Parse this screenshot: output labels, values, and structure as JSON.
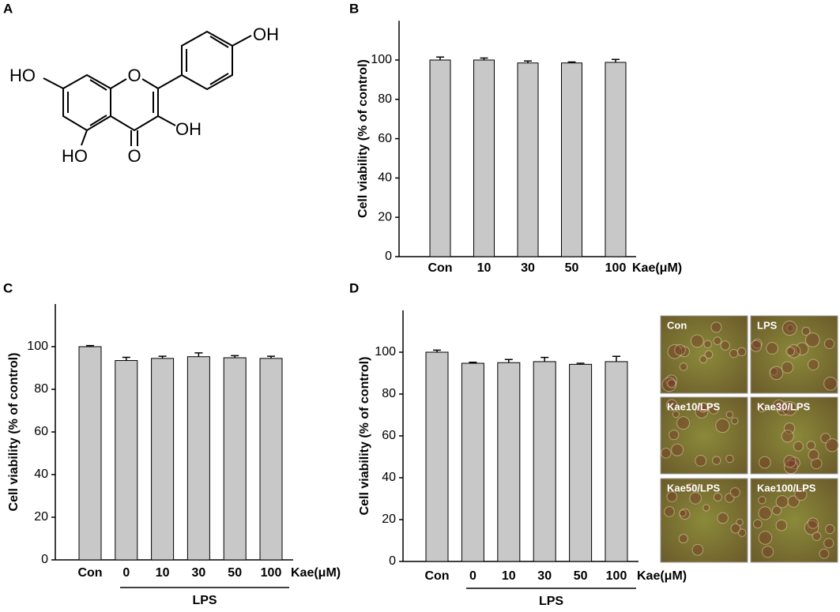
{
  "panel_labels": [
    "A",
    "B",
    "C",
    "D"
  ],
  "structure": {
    "labels": [
      "OH",
      "HO",
      "O",
      "OH",
      "HO",
      "O"
    ]
  },
  "micrographs": [
    "Con",
    "LPS",
    "Kae10/LPS",
    "Kae30/LPS",
    "Kae50/LPS",
    "Kae100/LPS"
  ],
  "chart_data": [
    {
      "type": "bar",
      "ylabel": "Cell viability (% of control)",
      "xlabel": "Kae(μM)",
      "categories": [
        "Con",
        "10",
        "30",
        "50",
        "100"
      ],
      "values": [
        100,
        100,
        98.5,
        98.5,
        98.8
      ],
      "errors": [
        1.5,
        1,
        1,
        0.5,
        1.5
      ],
      "color": "#c8c8c8",
      "ylim": [
        0,
        120
      ],
      "yticks": [
        0,
        20,
        40,
        60,
        80,
        100
      ]
    },
    {
      "type": "bar",
      "ylabel": "Cell viability (% of control)",
      "xlabel": "Kae(μM)",
      "group_label": "LPS",
      "categories": [
        "Con",
        "0",
        "10",
        "30",
        "50",
        "100"
      ],
      "values": [
        100,
        93.5,
        94.5,
        95.3,
        94.8,
        94.5
      ],
      "errors": [
        0.5,
        1.5,
        1,
        1.8,
        1,
        1
      ],
      "color": "#c8c8c8",
      "ylim": [
        0,
        120
      ],
      "yticks": [
        0,
        20,
        40,
        60,
        80,
        100
      ]
    },
    {
      "type": "bar",
      "ylabel": "Cell viability (% of control)",
      "xlabel": "Kae(μM)",
      "group_label": "LPS",
      "categories": [
        "Con",
        "0",
        "10",
        "30",
        "50",
        "100"
      ],
      "values": [
        100,
        94.7,
        95,
        95.5,
        94.2,
        95.5
      ],
      "errors": [
        1,
        0.5,
        1.5,
        2,
        0.5,
        2.5
      ],
      "color": "#c8c8c8",
      "ylim": [
        0,
        120
      ],
      "yticks": [
        0,
        20,
        40,
        60,
        80,
        100
      ]
    }
  ]
}
